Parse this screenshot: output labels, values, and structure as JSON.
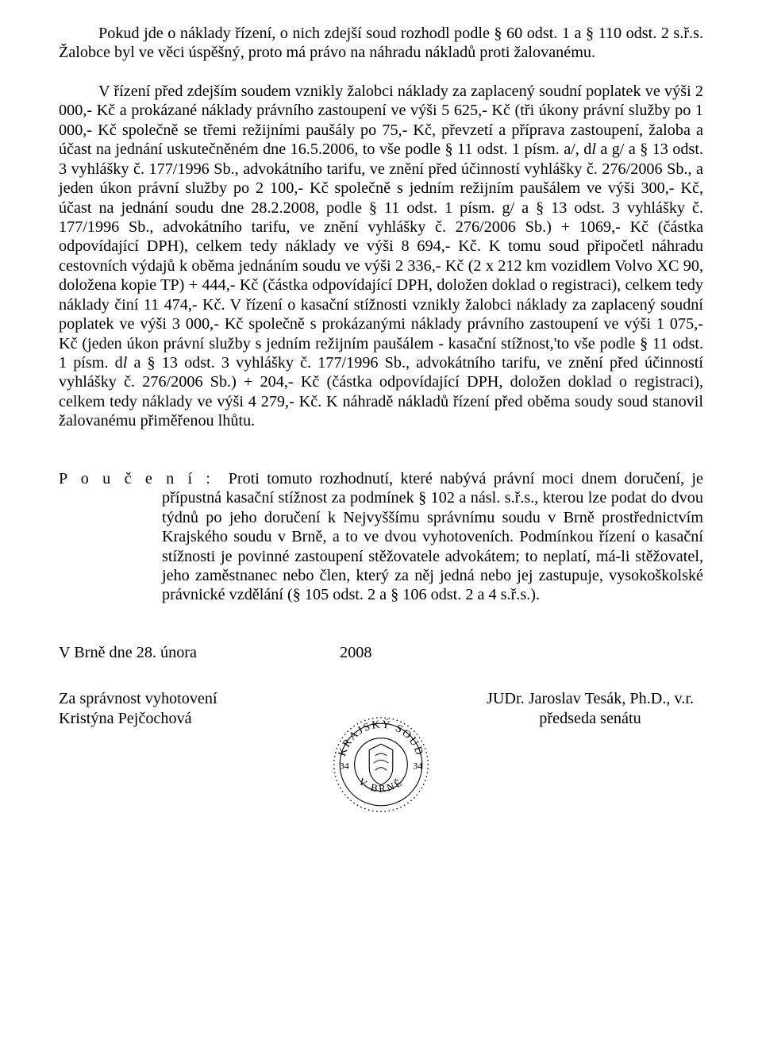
{
  "p1": "Pokud jde o náklady řízení, o nich zdejší soud rozhodl podle § 60 odst. 1 a § 110 odst. 2 s.ř.s. Žalobce byl ve věci úspěšný, proto má právo na náhradu nákladů proti žalovanému.",
  "p2_part1": "V řízení před zdejším soudem vznikly žalobci náklady za zaplacený soudní poplatek ve výši 2 000,- Kč a prokázané náklady právního zastoupení ve výši 5 625,- Kč (tři úkony právní služby po 1 000,- Kč společně se třemi režijními paušály po 75,- Kč, převzetí a příprava zastoupení, žaloba a účast na jednání uskutečněném dne 16.5.2006, to vše podle § 11 odst. 1 písm. a/, d",
  "p2_it1": "l",
  "p2_part2": " a g/ a § 13 odst. 3 vyhlášky č. 177/1996 Sb., advokátního tarifu, ve znění před účinností vyhlášky č. 276/2006 Sb., a jeden úkon právní služby po 2 100,- Kč společně s jedním režijním paušálem ve výši 300,- Kč, účast na jednání soudu dne 28.2.2008, podle § 11 odst. 1 písm. g/ a § 13 odst. 3 vyhlášky č. 177/1996 Sb., advokátního tarifu, ve znění vyhlášky č. 276/2006 Sb.) + 1069,- Kč (částka odpovídající DPH), celkem tedy náklady ve výši 8 694,- Kč. K tomu soud připočetl náhradu cestovních výdajů k oběma jednáním soudu ve výši 2 336,- Kč (2 x 212 km vozidlem Volvo XC 90, doložena kopie TP) + 444,- Kč (částka odpovídající DPH, doložen doklad o registraci), celkem tedy náklady činí 11 474,- Kč. V řízení o kasační stížnosti vznikly žalobci náklady za zaplacený soudní poplatek ve výši 3 000,- Kč společně s prokázanými náklady právního zastoupení ve výši 1 075,- Kč (jeden úkon právní služby s jedním režijním paušálem - kasační stížnost,'to vše podle § 11 odst. 1 písm. d",
  "p2_it2": "l",
  "p2_part3": " a § 13 odst. 3 vyhlášky č. 177/1996 Sb., advokátního tarifu, ve znění před účinností vyhlášky č. 276/2006 Sb.) + 204,- Kč (částka odpovídající DPH, doložen doklad o registraci), celkem tedy náklady ve výši 4 279,- Kč. K náhradě nákladů řízení před oběma soudy soud stanovil žalovanému přiměřenou lhůtu.",
  "pouceni_label": "P o u č e n í :",
  "pouceni_text": "Proti tomuto rozhodnutí, které nabývá právní moci dnem doručení, je přípustná kasační stížnost za podmínek § 102 a násl. s.ř.s., kterou lze podat do dvou týdnů po jeho doručení k Nejvyššímu správnímu soudu v Brně prostřednictvím Krajského soudu v Brně, a to ve dvou vyhotoveních. Podmínkou řízení o kasační stížnosti je povinné zastoupení stěžovatele advokátem; to neplatí, má-li stěžovatel, jeho zaměstnanec nebo člen, který za něj jedná nebo jej zastupuje, vysokoškolské právnické vzdělání (§ 105 odst. 2 a § 106 odst. 2 a 4 s.ř.s.).",
  "date_left": "V Brně dne 28. února",
  "date_right": "2008",
  "sig_left_1": "Za správnost vyhotovení",
  "sig_left_2": "Kristýna Pejčochová",
  "sig_right_1": "JUDr. Jaroslav Tesák, Ph.D., v.r.",
  "sig_right_2": "předseda senátu",
  "stamp": {
    "top_text": "KRAJSKÝ SOUD",
    "bottom_text": "V BRNĚ",
    "left_num": "34",
    "right_num": "34",
    "stroke": "#000000",
    "fill": "#ffffff",
    "font": "Times New Roman"
  }
}
